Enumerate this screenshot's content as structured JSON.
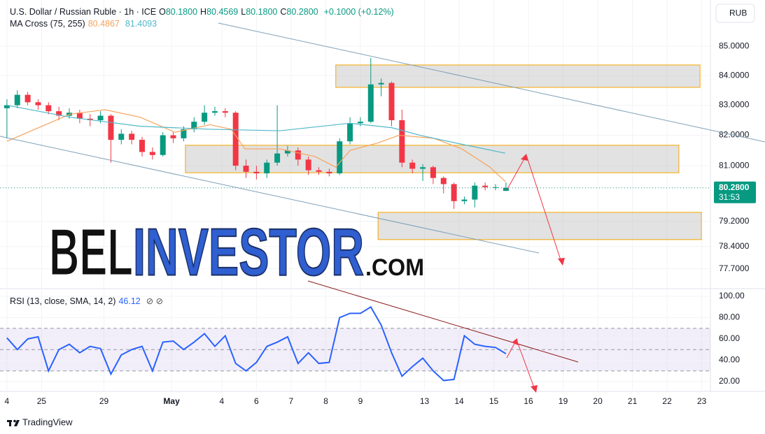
{
  "chart_data": [
    {
      "type": "candlestick",
      "title": "U.S. Dollar / Russian Ruble · 1h · ICE",
      "ohlc_legend": [
        {
          "key": "O",
          "value": "80.1800"
        },
        {
          "key": "H",
          "value": "80.4569"
        },
        {
          "key": "L",
          "value": "80.1800"
        },
        {
          "key": "C",
          "value": "80.2800"
        }
      ],
      "change": "+0.1000 (+0.12%)",
      "indicator": "MA Cross (75, 255)",
      "currency": "RUB",
      "colors": {
        "up": "#089981",
        "down": "#f23645"
      },
      "x": [
        0,
        0.3,
        0.6,
        0.9,
        1.2,
        1.5,
        1.8,
        2.1,
        2.4,
        2.7,
        3,
        3.3,
        3.6,
        3.9,
        4.2,
        4.5,
        4.8,
        5.1,
        5.4,
        5.7,
        6,
        6.3,
        6.6,
        6.9,
        7.2,
        7.5,
        7.8,
        8.1,
        8.4,
        8.7,
        9,
        9.3,
        9.6,
        9.9,
        10.2,
        10.5,
        10.8,
        11.1,
        11.4,
        11.7,
        12,
        12.3,
        12.6,
        12.9,
        13.2,
        13.5,
        13.8,
        14.1,
        14.4
      ],
      "open": [
        82.9,
        83.0,
        83.35,
        83.1,
        83.0,
        82.8,
        82.65,
        82.75,
        82.55,
        82.5,
        82.65,
        81.85,
        82.05,
        81.85,
        81.45,
        81.35,
        82.0,
        81.9,
        82.2,
        82.45,
        82.75,
        82.8,
        82.75,
        81.0,
        80.8,
        80.75,
        81.1,
        81.4,
        81.5,
        81.2,
        80.85,
        80.8,
        80.75,
        81.8,
        82.4,
        82.45,
        83.7,
        83.75,
        82.5,
        81.1,
        80.9,
        80.95,
        80.6,
        80.4,
        79.85,
        79.9,
        80.35,
        80.3,
        80.18
      ],
      "high": [
        83.2,
        83.5,
        83.45,
        83.2,
        83.1,
        82.95,
        82.9,
        82.85,
        82.7,
        82.8,
        82.7,
        82.2,
        82.15,
        81.95,
        81.6,
        82.1,
        82.1,
        82.3,
        82.6,
        83.0,
        82.95,
        82.9,
        82.8,
        81.2,
        81.0,
        81.2,
        83.0,
        81.65,
        81.6,
        81.3,
        80.95,
        80.9,
        81.9,
        82.6,
        82.6,
        84.6,
        83.9,
        83.8,
        82.85,
        81.2,
        81.05,
        81.0,
        80.65,
        80.45,
        80.0,
        80.45,
        80.45,
        80.4,
        80.4569
      ],
      "low": [
        81.9,
        82.9,
        83.0,
        82.85,
        82.7,
        82.5,
        82.55,
        82.4,
        82.3,
        82.4,
        81.1,
        81.7,
        81.7,
        81.3,
        81.2,
        81.3,
        81.75,
        81.8,
        82.1,
        82.35,
        82.65,
        82.6,
        80.85,
        80.6,
        80.55,
        80.6,
        81.0,
        81.3,
        81.0,
        80.7,
        80.7,
        80.65,
        80.7,
        81.7,
        82.3,
        82.4,
        83.3,
        82.3,
        80.95,
        80.75,
        80.5,
        80.4,
        80.1,
        79.6,
        79.75,
        79.65,
        80.2,
        80.2,
        80.18
      ],
      "close": [
        83.0,
        83.35,
        83.1,
        83.0,
        82.8,
        82.65,
        82.75,
        82.55,
        82.5,
        82.65,
        81.85,
        82.05,
        81.85,
        81.45,
        81.35,
        82.0,
        81.9,
        82.2,
        82.45,
        82.75,
        82.8,
        82.75,
        81.0,
        80.8,
        80.75,
        81.1,
        81.4,
        81.5,
        81.2,
        80.85,
        80.8,
        80.75,
        81.8,
        82.4,
        82.45,
        83.7,
        83.75,
        82.5,
        81.1,
        80.9,
        80.95,
        80.6,
        80.4,
        79.85,
        79.9,
        80.35,
        80.3,
        80.3,
        80.28
      ],
      "ma": [
        {
          "color": "#f7a35c",
          "x": [
            0,
            0.81,
            1.82,
            2.83,
            3.84,
            4.85,
            5.86,
            6.47,
            6.87,
            7.88,
            8.89,
            9.49,
            9.9,
            10.71,
            11.31,
            12.32,
            13.13,
            13.94,
            14.38
          ],
          "values": [
            81.8,
            82.2,
            82.7,
            82.85,
            82.6,
            82.1,
            82.35,
            82.2,
            81.55,
            81.55,
            81.3,
            80.95,
            81.5,
            81.75,
            82.0,
            81.9,
            81.55,
            80.95,
            80.4867
          ]
        },
        {
          "color": "#4fb8c9",
          "x": [
            0,
            1.82,
            3.84,
            5.86,
            7.88,
            9.9,
            11.11,
            11.92,
            12.93,
            14.38
          ],
          "values": [
            83.0,
            82.6,
            82.3,
            82.2,
            82.15,
            82.4,
            82.25,
            82.0,
            81.75,
            81.4093
          ]
        }
      ],
      "zones": [
        {
          "x": [
            9.49,
            20.0
          ],
          "y": [
            83.6,
            84.36
          ]
        },
        {
          "x": [
            5.15,
            19.39
          ],
          "y": [
            80.77,
            81.67
          ]
        },
        {
          "x": [
            10.71,
            20.04
          ],
          "y": [
            78.62,
            79.49
          ]
        }
      ],
      "last_price": {
        "value": 80.28,
        "label": "80.2800"
      },
      "countdown": "31:53",
      "log": true,
      "grid": true,
      "xlim": [
        -0.2,
        20.3
      ],
      "ylim": [
        77.08,
        86.6
      ],
      "yticks": [
        {
          "value": 85,
          "label": "85.0000"
        },
        {
          "value": 84,
          "label": "84.0000"
        },
        {
          "value": 83,
          "label": "83.0000"
        },
        {
          "value": 82,
          "label": "82.0000"
        },
        {
          "value": 81,
          "label": "81.0000"
        },
        {
          "value": 79.2,
          "label": "79.2000"
        },
        {
          "value": 78.4,
          "label": "78.4000"
        },
        {
          "value": 77.7,
          "label": "77.7000"
        }
      ]
    },
    {
      "type": "line",
      "title": "RSI (13, close, SMA, 14, 2)",
      "color": "#2962ff",
      "x": [
        0,
        0.3,
        0.6,
        0.9,
        1.2,
        1.5,
        1.8,
        2.1,
        2.4,
        2.7,
        3,
        3.3,
        3.6,
        3.9,
        4.2,
        4.5,
        4.8,
        5.1,
        5.4,
        5.7,
        6,
        6.3,
        6.6,
        6.9,
        7.2,
        7.5,
        7.8,
        8.1,
        8.4,
        8.7,
        9,
        9.3,
        9.6,
        9.9,
        10.2,
        10.5,
        10.8,
        11.1,
        11.4,
        11.7,
        12,
        12.3,
        12.6,
        12.9,
        13.2,
        13.5,
        13.8,
        14.1,
        14.4
      ],
      "values": [
        61,
        50,
        60,
        62,
        30,
        50,
        55,
        47,
        53,
        51,
        27,
        45,
        50,
        53,
        30,
        57,
        58,
        50,
        57,
        65,
        53,
        63,
        37,
        30,
        38,
        53,
        57,
        62,
        37,
        47,
        37,
        38,
        80,
        84,
        84,
        90,
        73,
        47,
        25,
        34,
        42,
        30,
        21,
        22,
        63,
        55,
        53,
        52,
        46.12
      ],
      "band": [
        30,
        70
      ],
      "midline": 50,
      "band_color": "#7e57c2",
      "grid": true,
      "xlim": [
        -0.2,
        20.3
      ],
      "ylim": [
        10.8,
        107.2
      ],
      "yticks": [
        {
          "value": 100,
          "label": "100.00"
        },
        {
          "value": 80,
          "label": "80.00"
        },
        {
          "value": 60,
          "label": "60.00"
        },
        {
          "value": 40,
          "label": "40.00"
        },
        {
          "value": 20,
          "label": "20.00"
        }
      ],
      "xticks": [
        {
          "value": 0,
          "label": "4"
        },
        {
          "value": 1,
          "label": "25"
        },
        {
          "value": 2.8,
          "label": "29"
        },
        {
          "value": 4.75,
          "label": "May"
        },
        {
          "value": 6.2,
          "label": "4"
        },
        {
          "value": 7.2,
          "label": "6"
        },
        {
          "value": 8.2,
          "label": "7"
        },
        {
          "value": 9.2,
          "label": "8"
        },
        {
          "value": 10.2,
          "label": "9"
        },
        {
          "value": 12.05,
          "label": "13"
        },
        {
          "value": 13.05,
          "label": "14"
        },
        {
          "value": 14.05,
          "label": "15"
        },
        {
          "value": 15.05,
          "label": "16"
        },
        {
          "value": 16.05,
          "label": "19"
        },
        {
          "value": 17.05,
          "label": "20"
        },
        {
          "value": 18.05,
          "label": "21"
        },
        {
          "value": 19.05,
          "label": "22"
        },
        {
          "value": 20.05,
          "label": "23"
        }
      ]
    }
  ],
  "watermark": {
    "part1": "BEL",
    "part2": "INVESTOR",
    "part3": ".COM"
  },
  "branding": "TradingView"
}
